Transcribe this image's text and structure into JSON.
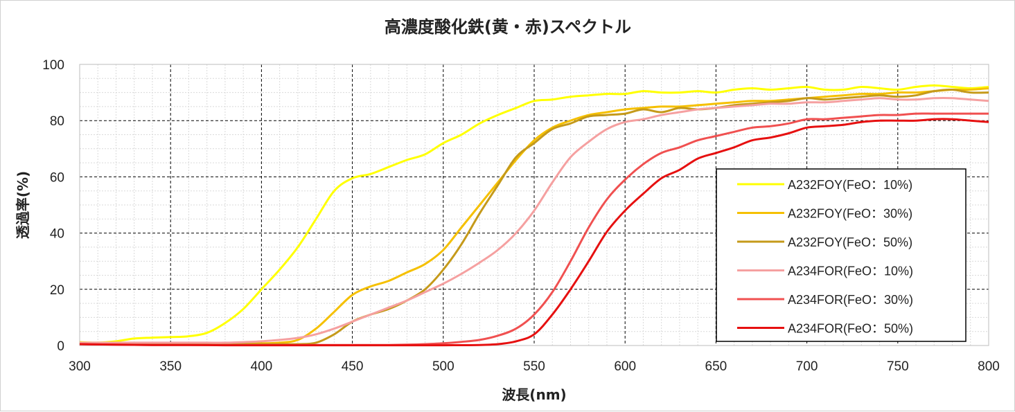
{
  "chart_data": {
    "type": "line",
    "title": "高濃度酸化鉄(黄・赤)スペクトル",
    "xlabel": "波長(nm)",
    "ylabel": "透過率(%)",
    "xlim": [
      300,
      800
    ],
    "ylim": [
      0,
      100
    ],
    "x_ticks": [
      300,
      350,
      400,
      450,
      500,
      550,
      600,
      650,
      700,
      750,
      800
    ],
    "y_ticks": [
      0,
      20,
      40,
      60,
      80,
      100
    ],
    "grid": "major dashed, minor dotted",
    "legend_position": "right",
    "series": [
      {
        "name": "A232FOY(FeO：10%)",
        "color": "#ffff00",
        "points": [
          [
            300,
            1.2
          ],
          [
            310,
            1
          ],
          [
            320,
            1.5
          ],
          [
            330,
            2.5
          ],
          [
            340,
            2.8
          ],
          [
            350,
            3
          ],
          [
            360,
            3.3
          ],
          [
            370,
            4.5
          ],
          [
            380,
            8
          ],
          [
            390,
            13
          ],
          [
            400,
            20
          ],
          [
            410,
            27
          ],
          [
            420,
            35
          ],
          [
            430,
            45
          ],
          [
            440,
            55
          ],
          [
            450,
            59.5
          ],
          [
            460,
            61
          ],
          [
            470,
            63.5
          ],
          [
            480,
            66
          ],
          [
            490,
            68
          ],
          [
            500,
            72
          ],
          [
            510,
            75
          ],
          [
            520,
            79
          ],
          [
            530,
            82
          ],
          [
            540,
            84.5
          ],
          [
            550,
            87
          ],
          [
            560,
            87.5
          ],
          [
            570,
            88.5
          ],
          [
            580,
            89
          ],
          [
            590,
            89.5
          ],
          [
            600,
            89.5
          ],
          [
            610,
            90.5
          ],
          [
            620,
            90
          ],
          [
            630,
            90
          ],
          [
            640,
            90.5
          ],
          [
            650,
            90
          ],
          [
            660,
            91
          ],
          [
            670,
            91.5
          ],
          [
            680,
            91
          ],
          [
            690,
            91.5
          ],
          [
            700,
            92
          ],
          [
            710,
            91
          ],
          [
            720,
            91
          ],
          [
            730,
            92
          ],
          [
            740,
            91.5
          ],
          [
            750,
            91
          ],
          [
            760,
            92
          ],
          [
            770,
            92.5
          ],
          [
            780,
            92
          ],
          [
            790,
            91.5
          ],
          [
            800,
            92
          ]
        ]
      },
      {
        "name": "A232FOY(FeO：30%)",
        "color": "#f5c000",
        "points": [
          [
            300,
            1
          ],
          [
            310,
            0.8
          ],
          [
            320,
            0.7
          ],
          [
            330,
            0.7
          ],
          [
            340,
            0.7
          ],
          [
            350,
            0.7
          ],
          [
            360,
            0.7
          ],
          [
            370,
            0.7
          ],
          [
            380,
            0.8
          ],
          [
            390,
            0.8
          ],
          [
            400,
            0.8
          ],
          [
            410,
            1
          ],
          [
            420,
            2
          ],
          [
            430,
            6
          ],
          [
            440,
            12
          ],
          [
            450,
            18
          ],
          [
            460,
            21
          ],
          [
            470,
            23
          ],
          [
            480,
            26
          ],
          [
            490,
            29
          ],
          [
            500,
            34
          ],
          [
            510,
            42
          ],
          [
            520,
            50
          ],
          [
            530,
            58
          ],
          [
            540,
            66
          ],
          [
            550,
            73
          ],
          [
            560,
            77.5
          ],
          [
            570,
            80
          ],
          [
            580,
            82
          ],
          [
            590,
            83
          ],
          [
            600,
            84
          ],
          [
            610,
            84.5
          ],
          [
            620,
            85
          ],
          [
            630,
            85
          ],
          [
            640,
            85.5
          ],
          [
            650,
            86
          ],
          [
            660,
            86.5
          ],
          [
            670,
            87
          ],
          [
            680,
            87
          ],
          [
            690,
            87.5
          ],
          [
            700,
            88
          ],
          [
            710,
            88.5
          ],
          [
            720,
            89
          ],
          [
            730,
            89.5
          ],
          [
            740,
            89.5
          ],
          [
            750,
            90
          ],
          [
            760,
            90
          ],
          [
            770,
            90.5
          ],
          [
            780,
            91
          ],
          [
            790,
            91
          ],
          [
            800,
            91.5
          ]
        ]
      },
      {
        "name": "A232FOY(FeO：50%)",
        "color": "#c59a1a",
        "points": [
          [
            300,
            1
          ],
          [
            310,
            0.8
          ],
          [
            320,
            0.6
          ],
          [
            330,
            0.5
          ],
          [
            340,
            0.5
          ],
          [
            350,
            0.5
          ],
          [
            360,
            0.5
          ],
          [
            370,
            0.5
          ],
          [
            380,
            0.5
          ],
          [
            390,
            0.5
          ],
          [
            400,
            0.5
          ],
          [
            410,
            0.5
          ],
          [
            420,
            0.5
          ],
          [
            430,
            1
          ],
          [
            440,
            4
          ],
          [
            450,
            8.5
          ],
          [
            460,
            11
          ],
          [
            470,
            13
          ],
          [
            480,
            16
          ],
          [
            490,
            20
          ],
          [
            500,
            27
          ],
          [
            510,
            36
          ],
          [
            520,
            47
          ],
          [
            530,
            57
          ],
          [
            540,
            67
          ],
          [
            550,
            72
          ],
          [
            560,
            77
          ],
          [
            570,
            79
          ],
          [
            580,
            81.5
          ],
          [
            590,
            82
          ],
          [
            600,
            82.5
          ],
          [
            610,
            84
          ],
          [
            620,
            83
          ],
          [
            630,
            84.5
          ],
          [
            640,
            84
          ],
          [
            650,
            84.5
          ],
          [
            660,
            85.5
          ],
          [
            670,
            86
          ],
          [
            680,
            86.5
          ],
          [
            690,
            87
          ],
          [
            700,
            88
          ],
          [
            710,
            87.5
          ],
          [
            720,
            88
          ],
          [
            730,
            88.5
          ],
          [
            740,
            89
          ],
          [
            750,
            88.5
          ],
          [
            760,
            89
          ],
          [
            770,
            90.5
          ],
          [
            780,
            91
          ],
          [
            790,
            90
          ],
          [
            800,
            90
          ]
        ]
      },
      {
        "name": "A234FOR(FeO：10%)",
        "color": "#f5a0a0",
        "points": [
          [
            300,
            1
          ],
          [
            310,
            1
          ],
          [
            320,
            1
          ],
          [
            330,
            1
          ],
          [
            340,
            1
          ],
          [
            350,
            1
          ],
          [
            360,
            1
          ],
          [
            370,
            1
          ],
          [
            380,
            1
          ],
          [
            390,
            1.2
          ],
          [
            400,
            1.5
          ],
          [
            410,
            2
          ],
          [
            420,
            2.7
          ],
          [
            430,
            4
          ],
          [
            440,
            6
          ],
          [
            450,
            8.5
          ],
          [
            460,
            11
          ],
          [
            470,
            13.5
          ],
          [
            480,
            16
          ],
          [
            490,
            19
          ],
          [
            500,
            22
          ],
          [
            510,
            25.5
          ],
          [
            520,
            29.5
          ],
          [
            530,
            34
          ],
          [
            540,
            40
          ],
          [
            550,
            48
          ],
          [
            560,
            58
          ],
          [
            570,
            67
          ],
          [
            580,
            72.5
          ],
          [
            590,
            77
          ],
          [
            600,
            79.5
          ],
          [
            610,
            80.5
          ],
          [
            620,
            82
          ],
          [
            630,
            83
          ],
          [
            640,
            84
          ],
          [
            650,
            84.5
          ],
          [
            660,
            85
          ],
          [
            670,
            85.5
          ],
          [
            680,
            86
          ],
          [
            690,
            86
          ],
          [
            700,
            86.5
          ],
          [
            710,
            86.5
          ],
          [
            720,
            87
          ],
          [
            730,
            87.5
          ],
          [
            740,
            88
          ],
          [
            750,
            87.5
          ],
          [
            760,
            87.5
          ],
          [
            770,
            88
          ],
          [
            780,
            88
          ],
          [
            790,
            87.5
          ],
          [
            800,
            87
          ]
        ]
      },
      {
        "name": "A234FOR(FeO：30%)",
        "color": "#f05050",
        "points": [
          [
            300,
            0.5
          ],
          [
            320,
            0.3
          ],
          [
            340,
            0.2
          ],
          [
            360,
            0.2
          ],
          [
            380,
            0.2
          ],
          [
            400,
            0.2
          ],
          [
            420,
            0.2
          ],
          [
            440,
            0.2
          ],
          [
            460,
            0.2
          ],
          [
            470,
            0.2
          ],
          [
            480,
            0.3
          ],
          [
            490,
            0.5
          ],
          [
            500,
            0.8
          ],
          [
            510,
            1.3
          ],
          [
            520,
            2
          ],
          [
            530,
            3.5
          ],
          [
            540,
            6
          ],
          [
            550,
            11
          ],
          [
            560,
            19
          ],
          [
            570,
            30
          ],
          [
            580,
            42
          ],
          [
            590,
            52
          ],
          [
            600,
            59
          ],
          [
            610,
            64.5
          ],
          [
            620,
            68.5
          ],
          [
            630,
            70.5
          ],
          [
            640,
            73
          ],
          [
            650,
            74.5
          ],
          [
            660,
            76
          ],
          [
            670,
            77.5
          ],
          [
            680,
            78
          ],
          [
            690,
            79
          ],
          [
            700,
            80.5
          ],
          [
            710,
            80.5
          ],
          [
            720,
            81
          ],
          [
            730,
            81.5
          ],
          [
            740,
            82
          ],
          [
            750,
            82
          ],
          [
            760,
            82.5
          ],
          [
            770,
            82.5
          ],
          [
            780,
            82.5
          ],
          [
            790,
            82.5
          ],
          [
            800,
            82.5
          ]
        ]
      },
      {
        "name": "A234FOR(FeO：50%)",
        "color": "#e61010",
        "points": [
          [
            300,
            0.5
          ],
          [
            320,
            0.3
          ],
          [
            340,
            0.2
          ],
          [
            360,
            0.2
          ],
          [
            380,
            0.1
          ],
          [
            400,
            0.1
          ],
          [
            420,
            0.1
          ],
          [
            440,
            0.1
          ],
          [
            460,
            0.1
          ],
          [
            480,
            0.1
          ],
          [
            500,
            0.1
          ],
          [
            520,
            0.2
          ],
          [
            530,
            0.5
          ],
          [
            540,
            1.5
          ],
          [
            550,
            4
          ],
          [
            560,
            11
          ],
          [
            570,
            20
          ],
          [
            580,
            30
          ],
          [
            590,
            40.5
          ],
          [
            600,
            48
          ],
          [
            610,
            54
          ],
          [
            620,
            59.5
          ],
          [
            630,
            62.5
          ],
          [
            640,
            66.5
          ],
          [
            650,
            68.5
          ],
          [
            660,
            70.5
          ],
          [
            670,
            73
          ],
          [
            680,
            74
          ],
          [
            690,
            75.5
          ],
          [
            700,
            77.5
          ],
          [
            710,
            78
          ],
          [
            720,
            78.5
          ],
          [
            730,
            79.5
          ],
          [
            740,
            80
          ],
          [
            750,
            80
          ],
          [
            760,
            80
          ],
          [
            770,
            80.5
          ],
          [
            780,
            80.5
          ],
          [
            790,
            80
          ],
          [
            800,
            79.5
          ]
        ]
      }
    ]
  }
}
